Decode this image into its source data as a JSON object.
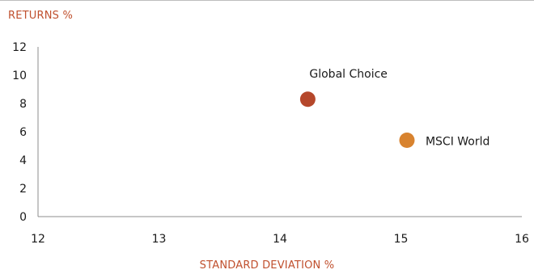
{
  "chart_data": {
    "type": "scatter",
    "ylabel": "RETURNS %",
    "xlabel": "STANDARD DEVIATION %",
    "xlim": [
      12,
      16
    ],
    "ylim": [
      0,
      12
    ],
    "x_ticks": [
      12,
      13,
      14,
      15,
      16
    ],
    "y_ticks": [
      0,
      2,
      4,
      6,
      8,
      10,
      12
    ],
    "grid": false,
    "points": [
      {
        "name": "Global Choice",
        "x": 14.23,
        "y": 8.3,
        "color": "#b5472b"
      },
      {
        "name": "MSCI World",
        "x": 15.05,
        "y": 5.4,
        "color": "#d8832f"
      }
    ],
    "label_color": "#c0502e",
    "axis_color": "#8c8c8c"
  }
}
